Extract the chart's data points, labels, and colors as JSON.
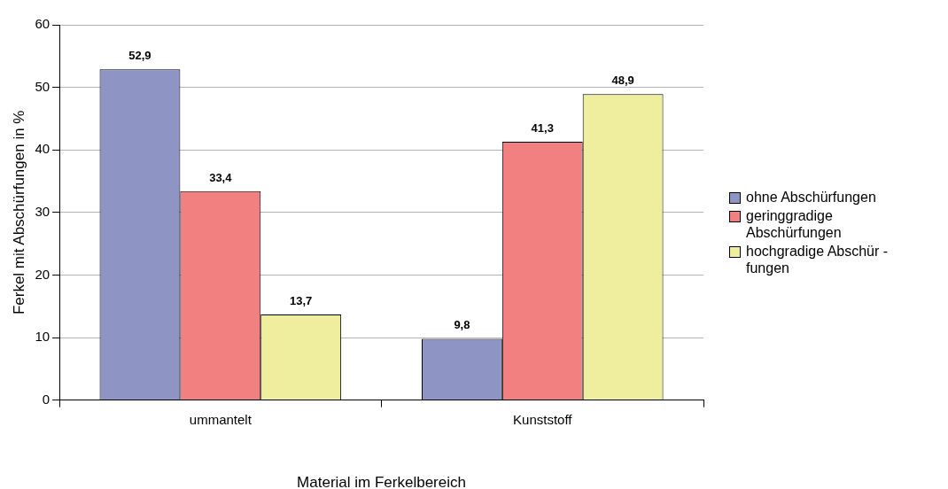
{
  "chart_data": {
    "type": "bar",
    "xlabel": "Material im Ferkelbereich",
    "ylabel": "Ferkel mit Abschürfungen in %",
    "categories": [
      "ummantelt",
      "Kunststoff"
    ],
    "series": [
      {
        "name": "ohne Abschürfungen",
        "color": "#8e94c4",
        "values": [
          52.9,
          9.8
        ],
        "value_labels": [
          "52,9",
          "9,8"
        ]
      },
      {
        "name": "geringgradige Abschürfungen",
        "color": "#f28080",
        "values": [
          33.4,
          41.3
        ],
        "value_labels": [
          "33,4",
          "41,3"
        ]
      },
      {
        "name": "hochgradige Abschür - fungen",
        "color": "#eeee9e",
        "values": [
          13.7,
          48.9
        ],
        "value_labels": [
          "13,7",
          "48,9"
        ]
      }
    ],
    "ylim": [
      0,
      60
    ],
    "yticks": [
      0,
      10,
      20,
      30,
      40,
      50,
      60
    ],
    "grid": "y",
    "legend": "right"
  }
}
